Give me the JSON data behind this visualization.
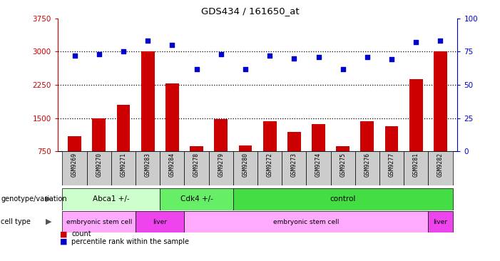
{
  "title": "GDS434 / 161650_at",
  "samples": [
    "GSM9269",
    "GSM9270",
    "GSM9271",
    "GSM9283",
    "GSM9284",
    "GSM9278",
    "GSM9279",
    "GSM9280",
    "GSM9272",
    "GSM9273",
    "GSM9274",
    "GSM9275",
    "GSM9276",
    "GSM9277",
    "GSM9281",
    "GSM9282"
  ],
  "counts": [
    1100,
    1500,
    1800,
    3010,
    2280,
    870,
    1480,
    880,
    1430,
    1190,
    1370,
    860,
    1430,
    1310,
    2380,
    3010
  ],
  "percentiles": [
    72,
    73,
    75,
    83,
    80,
    62,
    73,
    62,
    72,
    70,
    71,
    62,
    71,
    69,
    82,
    83
  ],
  "bar_color": "#cc0000",
  "dot_color": "#0000cc",
  "ylim_left": [
    750,
    3750
  ],
  "ylim_right": [
    0,
    100
  ],
  "yticks_left": [
    750,
    1500,
    2250,
    3000,
    3750
  ],
  "yticks_right": [
    0,
    25,
    50,
    75,
    100
  ],
  "hlines": [
    1500,
    2250,
    3000
  ],
  "genotype_groups": [
    {
      "label": "Abca1 +/-",
      "start": 0,
      "end": 4,
      "color": "#ccffcc"
    },
    {
      "label": "Cdk4 +/-",
      "start": 4,
      "end": 7,
      "color": "#66ee66"
    },
    {
      "label": "control",
      "start": 7,
      "end": 16,
      "color": "#44dd44"
    }
  ],
  "celltype_groups": [
    {
      "label": "embryonic stem cell",
      "start": 0,
      "end": 3,
      "color": "#ffaaff"
    },
    {
      "label": "liver",
      "start": 3,
      "end": 5,
      "color": "#ee44ee"
    },
    {
      "label": "embryonic stem cell",
      "start": 5,
      "end": 15,
      "color": "#ffaaff"
    },
    {
      "label": "liver",
      "start": 15,
      "end": 16,
      "color": "#ee44ee"
    }
  ],
  "legend_count_color": "#cc0000",
  "legend_dot_color": "#0000cc",
  "bg_color": "#ffffff",
  "plot_bg": "#ffffff",
  "axis_color_left": "#cc0000",
  "axis_color_right": "#0000cc",
  "xtick_bg": "#cccccc"
}
